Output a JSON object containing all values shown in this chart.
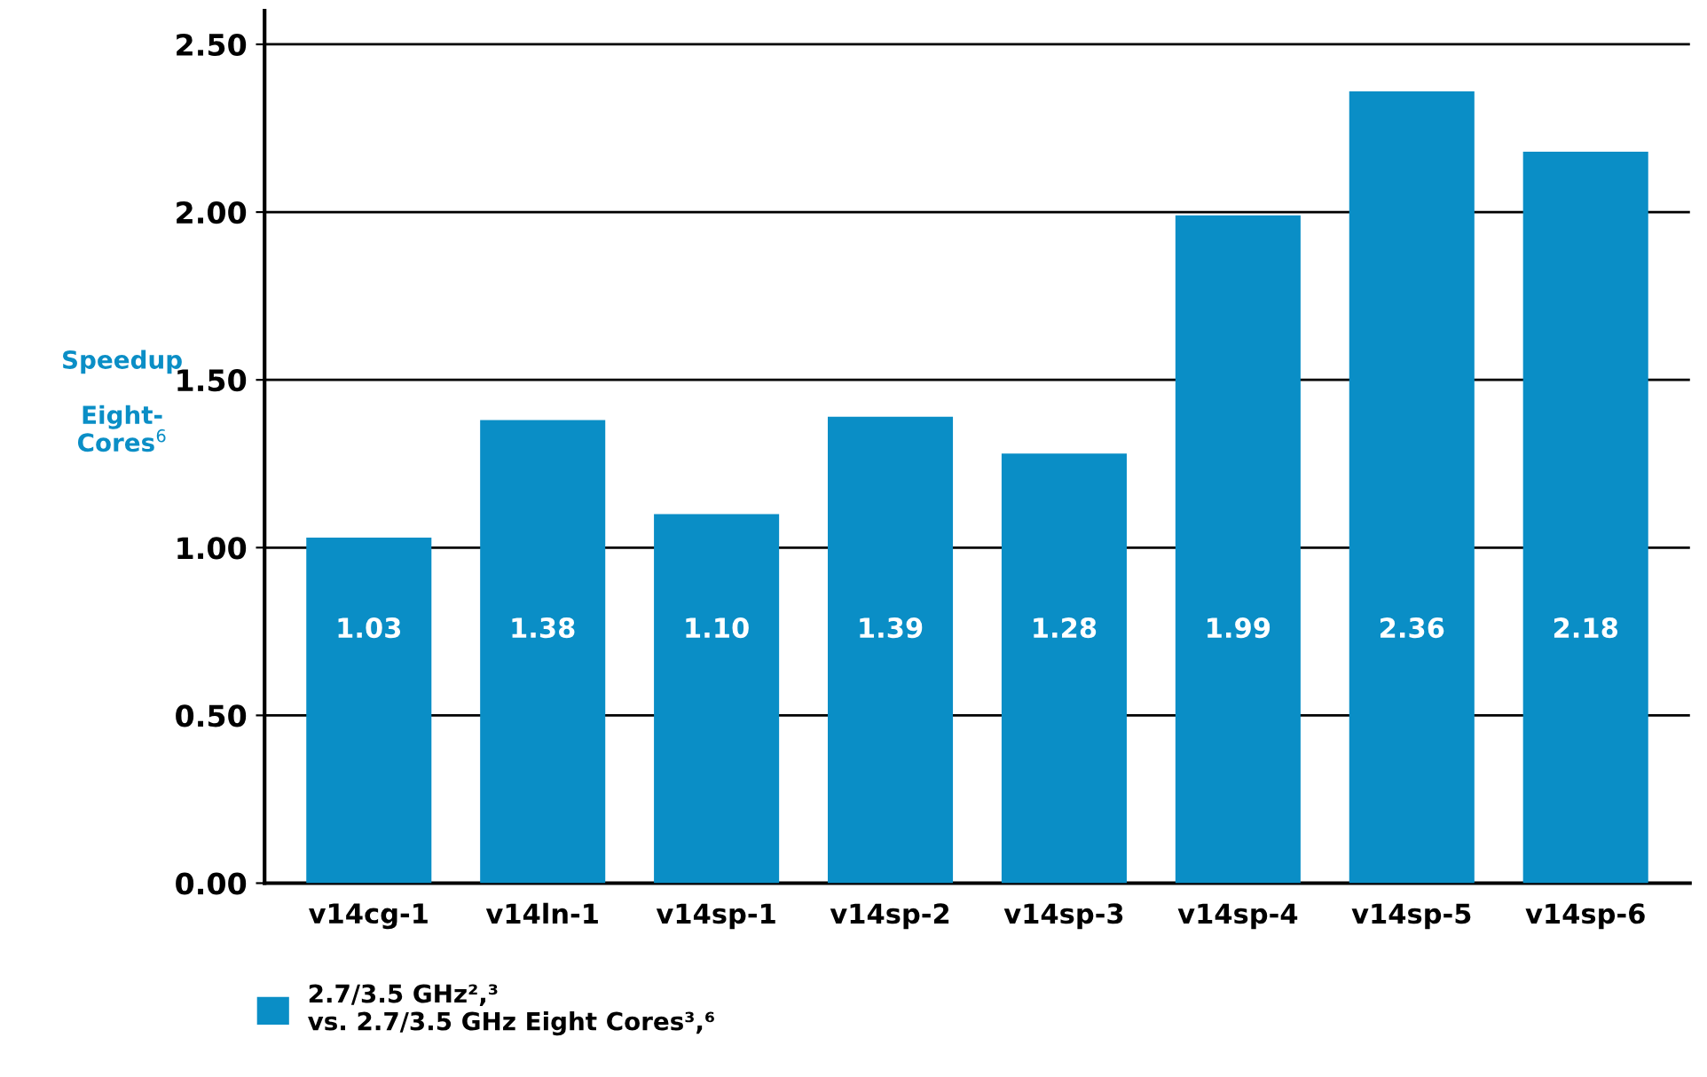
{
  "chart_data": {
    "type": "bar",
    "ylabel": "Speedup\n\nEight-\nCores$^{6}$",
    "categories": [
      "v14cg-1",
      "v14ln-1",
      "v14sp-1",
      "v14sp-2",
      "v14sp-3",
      "v14sp-4",
      "v14sp-5",
      "v14sp-6"
    ],
    "series": [
      {
        "name": "2.7/3.5 GHz²,³\nvs. 2.7/3.5 GHz Eight Cores³,⁶",
        "color": "#0a8ec6",
        "values": [
          1.03,
          1.38,
          1.1,
          1.39,
          1.28,
          1.99,
          2.36,
          2.18
        ],
        "value_labels": [
          "1.03",
          "1.38",
          "1.10",
          "1.39",
          "1.28",
          "1.99",
          "2.36",
          "2.18"
        ]
      }
    ],
    "ylim": [
      0,
      2.6
    ],
    "yticks": [
      "0.00",
      "0.50",
      "1.00",
      "1.50",
      "2.00",
      "2.50"
    ],
    "grid": "y",
    "legend": "bottom left"
  }
}
